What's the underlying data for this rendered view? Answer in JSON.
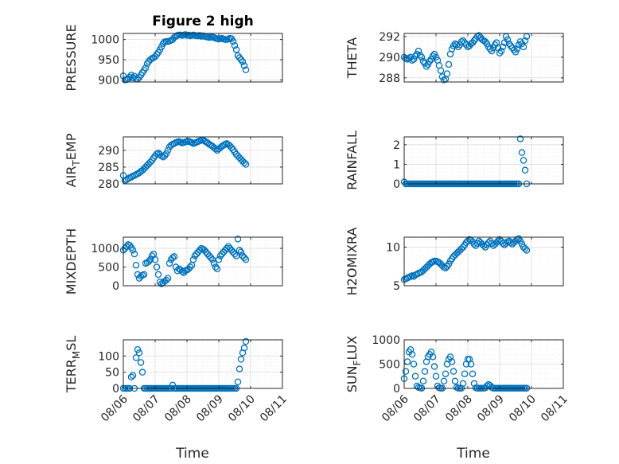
{
  "title": "Figure 2 high",
  "colors": {
    "marker": "#0072BD",
    "axis": "#262626",
    "grid": "#dddddd",
    "background": "#ffffff"
  },
  "chart_data": [
    {
      "type": "scatter",
      "ylabel": "PRESSURE",
      "title": "Figure 2 high",
      "xlim": [
        "08/06",
        "08/11"
      ],
      "ylim": [
        895,
        1015
      ],
      "yticks": [
        900,
        950,
        1000
      ],
      "grid": true,
      "show_xticklabels": false,
      "x": [
        0.0,
        0.05,
        0.1,
        0.15,
        0.2,
        0.25,
        0.3,
        0.35,
        0.4,
        0.45,
        0.5,
        0.55,
        0.6,
        0.65,
        0.7,
        0.75,
        0.8,
        0.85,
        0.9,
        0.95,
        1.0,
        1.05,
        1.1,
        1.15,
        1.2,
        1.25,
        1.3,
        1.35,
        1.4,
        1.45,
        1.5,
        1.55,
        1.6,
        1.65,
        1.7,
        1.75,
        1.8,
        1.85,
        1.9,
        1.95,
        2.0,
        2.05,
        2.1,
        2.15,
        2.2,
        2.25,
        2.3,
        2.35,
        2.4,
        2.45,
        2.5,
        2.55,
        2.6,
        2.65,
        2.7,
        2.75,
        2.8,
        2.85,
        2.9,
        2.95,
        3.0,
        3.05,
        3.1,
        3.15,
        3.2,
        3.25,
        3.3,
        3.35,
        3.4,
        3.45,
        3.5,
        3.55,
        3.6,
        3.65,
        3.7,
        3.75,
        3.8,
        3.85
      ],
      "y": [
        910,
        900,
        901,
        903,
        907,
        912,
        905,
        909,
        903,
        902,
        906,
        912,
        918,
        924,
        930,
        940,
        946,
        950,
        953,
        955,
        958,
        963,
        968,
        975,
        982,
        990,
        994,
        995,
        995,
        996,
        998,
        1000,
        1005,
        1008,
        1010,
        1011,
        1011,
        1010,
        1011,
        1012,
        1010,
        1011,
        1009,
        1010,
        1011,
        1010,
        1009,
        1009,
        1010,
        1008,
        1009,
        1008,
        1007,
        1006,
        1005,
        1006,
        1006,
        1005,
        1003,
        1002,
        1001,
        1002,
        1003,
        1001,
        1000,
        1000,
        1001,
        1003,
        1002,
        995,
        985,
        975,
        960,
        955,
        950,
        945,
        935,
        925
      ]
    },
    {
      "type": "scatter",
      "ylabel": "THETA",
      "xlim": [
        "08/06",
        "08/11"
      ],
      "ylim": [
        287.6,
        292.3
      ],
      "yticks": [
        288,
        290,
        292
      ],
      "grid": true,
      "show_xticklabels": false,
      "x": [
        0.0,
        0.05,
        0.1,
        0.15,
        0.2,
        0.25,
        0.3,
        0.35,
        0.4,
        0.45,
        0.5,
        0.55,
        0.6,
        0.65,
        0.7,
        0.75,
        0.8,
        0.85,
        0.9,
        0.95,
        1.0,
        1.05,
        1.1,
        1.15,
        1.2,
        1.25,
        1.3,
        1.35,
        1.4,
        1.45,
        1.5,
        1.55,
        1.6,
        1.65,
        1.7,
        1.75,
        1.8,
        1.85,
        1.9,
        1.95,
        2.0,
        2.05,
        2.1,
        2.15,
        2.2,
        2.25,
        2.3,
        2.35,
        2.4,
        2.45,
        2.5,
        2.55,
        2.6,
        2.65,
        2.7,
        2.75,
        2.8,
        2.85,
        2.9,
        2.95,
        3.0,
        3.05,
        3.1,
        3.15,
        3.2,
        3.25,
        3.3,
        3.35,
        3.4,
        3.45,
        3.5,
        3.55,
        3.6,
        3.65,
        3.7,
        3.75,
        3.8,
        3.85
      ],
      "y": [
        290.0,
        289.9,
        289.8,
        289.9,
        290.0,
        289.7,
        289.8,
        290.1,
        290.3,
        290.6,
        290.2,
        290.0,
        289.6,
        289.4,
        289.1,
        289.3,
        289.6,
        289.8,
        290.1,
        290.3,
        290.0,
        289.7,
        289.2,
        288.7,
        288.1,
        287.8,
        287.9,
        288.4,
        289.3,
        290.3,
        290.8,
        291.1,
        291.3,
        291.2,
        291.0,
        291.2,
        291.5,
        291.6,
        291.4,
        291.2,
        291.0,
        291.1,
        291.3,
        291.4,
        291.6,
        291.8,
        292.0,
        292.1,
        291.9,
        291.7,
        291.6,
        291.5,
        291.3,
        291.0,
        290.8,
        290.6,
        290.9,
        291.2,
        291.4,
        290.9,
        290.4,
        290.6,
        291.0,
        291.4,
        292.0,
        291.7,
        291.3,
        291.1,
        290.9,
        290.7,
        290.5,
        290.8,
        291.2,
        291.5,
        291.3,
        291.0,
        291.6,
        292.0
      ]
    },
    {
      "type": "scatter",
      "ylabel": "AIR_TEMP",
      "xlim": [
        "08/06",
        "08/11"
      ],
      "ylim": [
        280,
        294
      ],
      "yticks": [
        280,
        285,
        290
      ],
      "grid": true,
      "show_xticklabels": false,
      "x": [
        0.0,
        0.05,
        0.1,
        0.15,
        0.2,
        0.25,
        0.3,
        0.35,
        0.4,
        0.45,
        0.5,
        0.55,
        0.6,
        0.65,
        0.7,
        0.75,
        0.8,
        0.85,
        0.9,
        0.95,
        1.0,
        1.05,
        1.1,
        1.15,
        1.2,
        1.25,
        1.3,
        1.35,
        1.4,
        1.45,
        1.5,
        1.55,
        1.6,
        1.65,
        1.7,
        1.75,
        1.8,
        1.85,
        1.9,
        1.95,
        2.0,
        2.05,
        2.1,
        2.15,
        2.2,
        2.25,
        2.3,
        2.35,
        2.4,
        2.45,
        2.5,
        2.55,
        2.6,
        2.65,
        2.7,
        2.75,
        2.8,
        2.85,
        2.9,
        2.95,
        3.0,
        3.05,
        3.1,
        3.15,
        3.2,
        3.25,
        3.3,
        3.35,
        3.4,
        3.45,
        3.5,
        3.55,
        3.6,
        3.65,
        3.7,
        3.75,
        3.8,
        3.85
      ],
      "y": [
        282.5,
        281.0,
        281.2,
        281.5,
        281.8,
        282.0,
        282.3,
        282.5,
        282.8,
        283.0,
        283.3,
        283.7,
        284.0,
        284.5,
        285.0,
        285.5,
        286.0,
        286.5,
        287.0,
        287.7,
        288.3,
        288.9,
        289.2,
        288.8,
        288.3,
        288.0,
        288.4,
        289.0,
        290.0,
        291.0,
        291.5,
        291.8,
        292.0,
        292.3,
        292.5,
        292.6,
        292.4,
        292.2,
        292.3,
        292.5,
        292.6,
        292.7,
        292.5,
        292.3,
        292.0,
        292.2,
        292.4,
        292.6,
        292.8,
        293.0,
        293.1,
        292.8,
        292.5,
        292.2,
        291.8,
        291.5,
        291.2,
        290.8,
        290.4,
        290.0,
        290.4,
        290.8,
        291.2,
        291.5,
        291.8,
        292.0,
        291.7,
        291.3,
        290.8,
        290.2,
        289.5,
        288.8,
        288.3,
        287.8,
        287.3,
        286.8,
        286.3,
        285.8
      ]
    },
    {
      "type": "scatter",
      "ylabel": "RAINFALL",
      "xlim": [
        "08/06",
        "08/11"
      ],
      "ylim": [
        0,
        2.4
      ],
      "yticks": [
        0,
        1,
        2
      ],
      "grid": true,
      "show_xticklabels": false,
      "x": [
        0.0,
        0.05,
        0.1,
        0.15,
        0.2,
        0.25,
        0.3,
        0.35,
        0.4,
        0.45,
        0.5,
        0.55,
        0.6,
        0.65,
        0.7,
        0.75,
        0.8,
        0.85,
        0.9,
        0.95,
        1.0,
        1.05,
        1.1,
        1.15,
        1.2,
        1.25,
        1.3,
        1.35,
        1.4,
        1.45,
        1.5,
        1.55,
        1.6,
        1.65,
        1.7,
        1.75,
        1.8,
        1.85,
        1.9,
        1.95,
        2.0,
        2.05,
        2.1,
        2.15,
        2.2,
        2.25,
        2.3,
        2.35,
        2.4,
        2.45,
        2.5,
        2.55,
        2.6,
        2.65,
        2.7,
        2.75,
        2.8,
        2.85,
        2.9,
        2.95,
        3.0,
        3.05,
        3.1,
        3.15,
        3.2,
        3.25,
        3.3,
        3.35,
        3.4,
        3.45,
        3.5,
        3.55,
        3.6,
        3.65,
        3.7,
        3.75,
        3.8,
        3.85
      ],
      "y": [
        0.1,
        0,
        0,
        0,
        0,
        0,
        0,
        0,
        0,
        0,
        0,
        0,
        0,
        0,
        0,
        0,
        0,
        0,
        0,
        0,
        0,
        0,
        0,
        0,
        0,
        0,
        0,
        0,
        0,
        0,
        0,
        0,
        0,
        0,
        0,
        0,
        0,
        0,
        0,
        0,
        0,
        0,
        0,
        0,
        0,
        0,
        0,
        0,
        0,
        0,
        0,
        0,
        0,
        0,
        0,
        0,
        0,
        0,
        0,
        0,
        0,
        0,
        0,
        0,
        0,
        0,
        0,
        0,
        0,
        0,
        0,
        0,
        0,
        2.3,
        1.6,
        1.2,
        0.7,
        0
      ]
    },
    {
      "type": "scatter",
      "ylabel": "MIXDEPTH",
      "xlim": [
        "08/06",
        "08/11"
      ],
      "ylim": [
        0,
        1300
      ],
      "yticks": [
        0,
        500,
        1000
      ],
      "grid": true,
      "show_xticklabels": false,
      "x": [
        0.0,
        0.05,
        0.1,
        0.15,
        0.2,
        0.25,
        0.3,
        0.35,
        0.4,
        0.45,
        0.5,
        0.55,
        0.6,
        0.65,
        0.7,
        0.75,
        0.8,
        0.85,
        0.9,
        0.95,
        1.0,
        1.05,
        1.1,
        1.15,
        1.2,
        1.25,
        1.3,
        1.35,
        1.4,
        1.45,
        1.5,
        1.55,
        1.6,
        1.65,
        1.7,
        1.75,
        1.8,
        1.85,
        1.9,
        1.95,
        2.0,
        2.05,
        2.1,
        2.15,
        2.2,
        2.25,
        2.3,
        2.35,
        2.4,
        2.45,
        2.5,
        2.55,
        2.6,
        2.65,
        2.7,
        2.75,
        2.8,
        2.85,
        2.9,
        2.95,
        3.0,
        3.05,
        3.1,
        3.15,
        3.2,
        3.25,
        3.3,
        3.35,
        3.4,
        3.45,
        3.5,
        3.55,
        3.6,
        3.65,
        3.7,
        3.75,
        3.8,
        3.85
      ],
      "y": [
        950,
        1000,
        1050,
        1100,
        1080,
        1020,
        950,
        850,
        550,
        300,
        200,
        250,
        280,
        300,
        600,
        620,
        650,
        700,
        800,
        850,
        700,
        500,
        300,
        100,
        50,
        80,
        120,
        150,
        200,
        600,
        700,
        750,
        780,
        500,
        400,
        450,
        420,
        380,
        350,
        400,
        420,
        450,
        500,
        550,
        700,
        800,
        850,
        900,
        950,
        1000,
        980,
        950,
        900,
        850,
        800,
        750,
        700,
        600,
        500,
        450,
        700,
        800,
        850,
        900,
        950,
        1000,
        1050,
        1000,
        950,
        900,
        850,
        800,
        1250,
        950,
        900,
        800,
        750,
        700
      ]
    },
    {
      "type": "scatter",
      "ylabel": "H2OMIXRA",
      "xlim": [
        "08/06",
        "08/11"
      ],
      "ylim": [
        5,
        11.3
      ],
      "yticks": [
        5,
        10
      ],
      "grid": true,
      "show_xticklabels": false,
      "x": [
        0.0,
        0.05,
        0.1,
        0.15,
        0.2,
        0.25,
        0.3,
        0.35,
        0.4,
        0.45,
        0.5,
        0.55,
        0.6,
        0.65,
        0.7,
        0.75,
        0.8,
        0.85,
        0.9,
        0.95,
        1.0,
        1.05,
        1.1,
        1.15,
        1.2,
        1.25,
        1.3,
        1.35,
        1.4,
        1.45,
        1.5,
        1.55,
        1.6,
        1.65,
        1.7,
        1.75,
        1.8,
        1.85,
        1.9,
        1.95,
        2.0,
        2.05,
        2.1,
        2.15,
        2.2,
        2.25,
        2.3,
        2.35,
        2.4,
        2.45,
        2.5,
        2.55,
        2.6,
        2.65,
        2.7,
        2.75,
        2.8,
        2.85,
        2.9,
        2.95,
        3.0,
        3.05,
        3.1,
        3.15,
        3.2,
        3.25,
        3.3,
        3.35,
        3.4,
        3.45,
        3.5,
        3.55,
        3.6,
        3.65,
        3.7,
        3.75,
        3.8,
        3.85
      ],
      "y": [
        5.8,
        5.9,
        6.0,
        6.1,
        6.2,
        6.3,
        6.2,
        6.4,
        6.5,
        6.6,
        6.7,
        6.8,
        7.0,
        7.2,
        7.4,
        7.6,
        7.8,
        8.0,
        8.1,
        8.2,
        8.2,
        8.1,
        8.0,
        7.8,
        7.6,
        7.4,
        7.3,
        7.5,
        7.8,
        8.2,
        8.5,
        8.8,
        9.0,
        9.2,
        9.4,
        9.6,
        9.8,
        10.0,
        10.3,
        10.6,
        10.8,
        11.0,
        10.9,
        10.7,
        10.4,
        10.2,
        10.5,
        10.8,
        10.6,
        10.4,
        10.2,
        10.0,
        10.3,
        10.6,
        10.8,
        10.5,
        10.2,
        10.4,
        10.6,
        10.8,
        11.0,
        10.8,
        10.5,
        10.3,
        10.5,
        10.7,
        10.8,
        10.6,
        10.4,
        10.6,
        10.8,
        11.0,
        11.1,
        10.8,
        10.4,
        10.0,
        9.8,
        9.6
      ]
    },
    {
      "type": "scatter",
      "ylabel": "TERR_MSL",
      "xlabel": "Time",
      "xlim": [
        "08/06",
        "08/11"
      ],
      "ylim": [
        0,
        150
      ],
      "yticks": [
        0,
        50,
        100
      ],
      "xticks": [
        "08/06",
        "08/07",
        "08/08",
        "08/09",
        "08/10",
        "08/11"
      ],
      "grid": true,
      "show_xticklabels": true,
      "x": [
        0.0,
        0.05,
        0.1,
        0.15,
        0.2,
        0.25,
        0.3,
        0.35,
        0.4,
        0.45,
        0.5,
        0.55,
        0.6,
        0.65,
        0.7,
        0.75,
        0.8,
        0.85,
        0.9,
        0.95,
        1.0,
        1.05,
        1.1,
        1.15,
        1.2,
        1.25,
        1.3,
        1.35,
        1.4,
        1.45,
        1.5,
        1.55,
        1.6,
        1.65,
        1.7,
        1.75,
        1.8,
        1.85,
        1.9,
        1.95,
        2.0,
        2.05,
        2.1,
        2.15,
        2.2,
        2.25,
        2.3,
        2.35,
        2.4,
        2.45,
        2.5,
        2.55,
        2.6,
        2.65,
        2.7,
        2.75,
        2.8,
        2.85,
        2.9,
        2.95,
        3.0,
        3.05,
        3.1,
        3.15,
        3.2,
        3.25,
        3.3,
        3.35,
        3.4,
        3.45,
        3.5,
        3.55,
        3.6,
        3.65,
        3.7,
        3.75,
        3.8,
        3.85
      ],
      "y": [
        0,
        0,
        0,
        0,
        0,
        35,
        40,
        0,
        95,
        120,
        110,
        80,
        50,
        0,
        0,
        0,
        0,
        0,
        0,
        0,
        0,
        0,
        0,
        0,
        0,
        0,
        0,
        0,
        0,
        0,
        0,
        10,
        0,
        0,
        0,
        0,
        0,
        0,
        0,
        0,
        0,
        0,
        0,
        0,
        0,
        0,
        0,
        0,
        0,
        0,
        0,
        0,
        0,
        0,
        0,
        0,
        0,
        0,
        0,
        0,
        0,
        0,
        0,
        0,
        0,
        0,
        0,
        0,
        0,
        0,
        0,
        0,
        20,
        60,
        90,
        110,
        125,
        145
      ]
    },
    {
      "type": "scatter",
      "ylabel": "SUN_FLUX",
      "xlabel": "Time",
      "xlim": [
        "08/06",
        "08/11"
      ],
      "ylim": [
        0,
        1000
      ],
      "yticks": [
        0,
        500,
        1000
      ],
      "xticks": [
        "08/06",
        "08/07",
        "08/08",
        "08/09",
        "08/10",
        "08/11"
      ],
      "grid": true,
      "show_xticklabels": true,
      "x": [
        0.0,
        0.05,
        0.1,
        0.15,
        0.2,
        0.25,
        0.3,
        0.35,
        0.4,
        0.45,
        0.5,
        0.55,
        0.6,
        0.65,
        0.7,
        0.75,
        0.8,
        0.85,
        0.9,
        0.95,
        1.0,
        1.05,
        1.1,
        1.15,
        1.2,
        1.25,
        1.3,
        1.35,
        1.4,
        1.45,
        1.5,
        1.55,
        1.6,
        1.65,
        1.7,
        1.75,
        1.8,
        1.85,
        1.9,
        1.95,
        2.0,
        2.05,
        2.1,
        2.15,
        2.2,
        2.25,
        2.3,
        2.35,
        2.4,
        2.45,
        2.5,
        2.55,
        2.6,
        2.65,
        2.7,
        2.75,
        2.8,
        2.85,
        2.9,
        2.95,
        3.0,
        3.05,
        3.1,
        3.15,
        3.2,
        3.25,
        3.3,
        3.35,
        3.4,
        3.45,
        3.5,
        3.55,
        3.6,
        3.65,
        3.7,
        3.75,
        3.8,
        3.85
      ],
      "y": [
        200,
        350,
        550,
        750,
        800,
        700,
        500,
        250,
        50,
        20,
        10,
        5,
        150,
        350,
        550,
        650,
        700,
        750,
        650,
        450,
        250,
        50,
        10,
        5,
        5,
        150,
        300,
        500,
        600,
        650,
        550,
        350,
        150,
        20,
        5,
        5,
        5,
        100,
        300,
        500,
        600,
        600,
        500,
        300,
        100,
        10,
        5,
        5,
        5,
        5,
        5,
        10,
        50,
        80,
        60,
        20,
        5,
        5,
        5,
        5,
        5,
        5,
        5,
        5,
        5,
        5,
        5,
        5,
        5,
        5,
        5,
        5,
        5,
        5,
        5,
        5,
        5,
        5
      ]
    }
  ]
}
